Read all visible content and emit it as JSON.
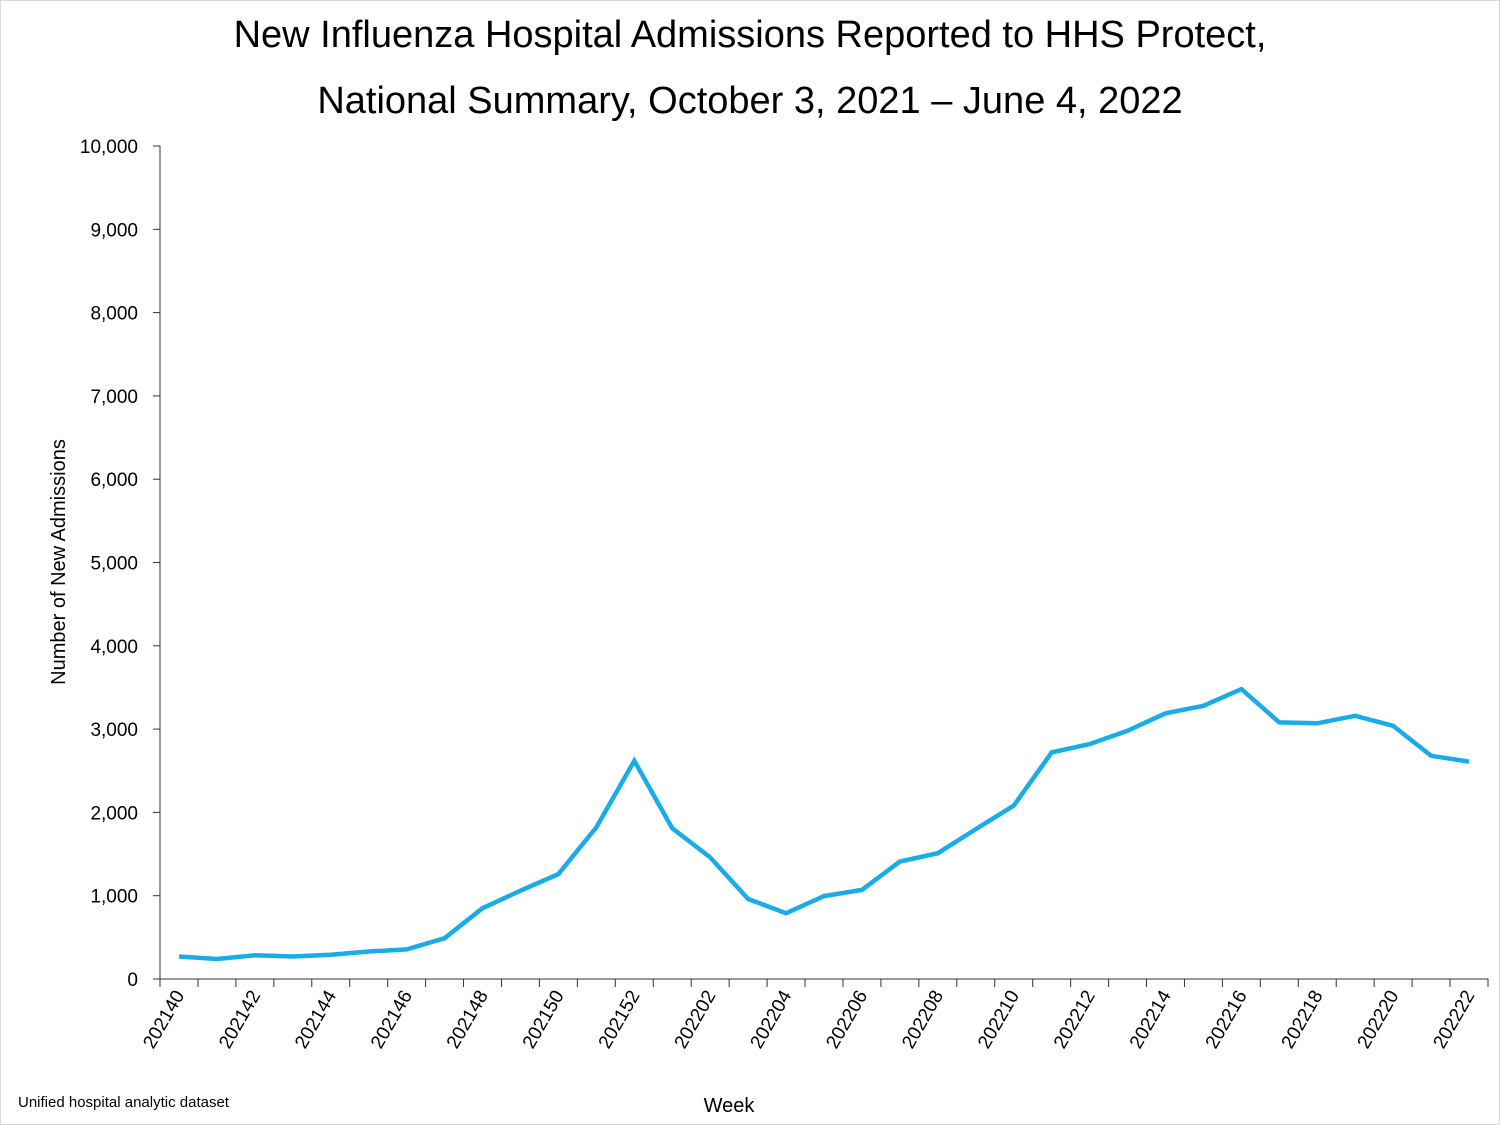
{
  "chart_data": {
    "type": "line",
    "title_line1": "New Influenza Hospital Admissions Reported to HHS Protect,",
    "title_line2": "National Summary, October 3, 2021 – June 4, 2022",
    "xlabel": "Week",
    "ylabel": "Number of New Admissions",
    "ylim": [
      0,
      10000
    ],
    "y_ticks": [
      0,
      1000,
      2000,
      3000,
      4000,
      5000,
      6000,
      7000,
      8000,
      9000,
      10000
    ],
    "y_tick_labels": [
      "0",
      "1,000",
      "2,000",
      "3,000",
      "4,000",
      "5,000",
      "6,000",
      "7,000",
      "8,000",
      "9,000",
      "10,000"
    ],
    "x_tick_labels": [
      "202140",
      "202142",
      "202144",
      "202146",
      "202148",
      "202150",
      "202152",
      "202202",
      "202204",
      "202206",
      "202208",
      "202210",
      "202212",
      "202214",
      "202216",
      "202218",
      "202220",
      "202222"
    ],
    "grid": false,
    "line_color": "#1AACE8",
    "series": [
      {
        "x": [
          "202140",
          "202141",
          "202142",
          "202143",
          "202144",
          "202145",
          "202146",
          "202147",
          "202148",
          "202149",
          "202150",
          "202151",
          "202152",
          "202201",
          "202202",
          "202203",
          "202204",
          "202205",
          "202206",
          "202207",
          "202208",
          "202209",
          "202210",
          "202211",
          "202212",
          "202213",
          "202214",
          "202215",
          "202216",
          "202217",
          "202218",
          "202219",
          "202220",
          "202221",
          "202222"
        ],
        "values": [
          270,
          240,
          285,
          270,
          290,
          330,
          355,
          490,
          850,
          1060,
          1260,
          1820,
          2620,
          1810,
          1460,
          960,
          790,
          995,
          1070,
          1410,
          1510,
          1800,
          2080,
          2720,
          2820,
          2980,
          3190,
          3280,
          3480,
          3080,
          3070,
          3160,
          3040,
          2680,
          2610
        ]
      }
    ]
  },
  "source_note": "Unified hospital analytic dataset"
}
